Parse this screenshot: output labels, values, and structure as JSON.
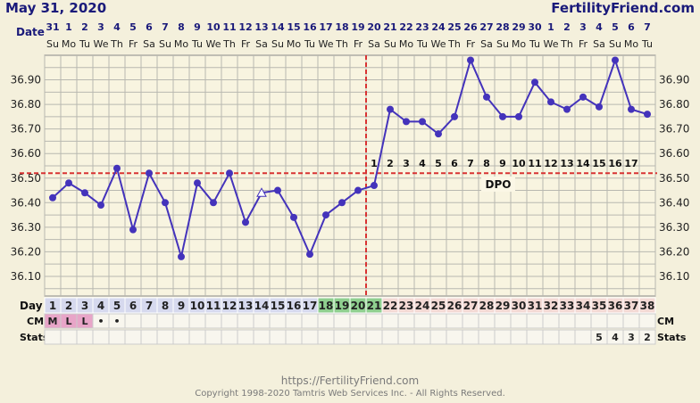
{
  "header": {
    "title": "May 31, 2020",
    "brand": "FertilityFriend.com",
    "date_label": "Date",
    "day_label": "Day",
    "cm_label": "CM",
    "stats_label": "Stats",
    "dpo_label": "DPO"
  },
  "footer": {
    "url": "https://FertilityFriend.com",
    "copyright": "Copyright 1998-2020 Tamtris Web Services Inc. - All Rights Reserved."
  },
  "colors": {
    "background": "#f4f0dc",
    "plot_bg": "#f8f4e0",
    "grid": "#b8b8b0",
    "line": "#4433bb",
    "marker": "#4433bb",
    "coverline": "#d83333",
    "header_text": "#1a1a7a",
    "row_blue": "#d6d9ee",
    "row_green": "#8fcf8f",
    "row_pink": "#f3d9d4",
    "cm_pink": "#e8a5c8"
  },
  "chart_data": {
    "type": "line",
    "title": "May 31, 2020",
    "dates": [
      "31",
      "1",
      "2",
      "3",
      "4",
      "5",
      "6",
      "7",
      "8",
      "9",
      "10",
      "11",
      "12",
      "13",
      "14",
      "15",
      "16",
      "17",
      "18",
      "19",
      "20",
      "21",
      "22",
      "23",
      "24",
      "25",
      "26",
      "27",
      "28",
      "29",
      "30",
      "1",
      "2",
      "3",
      "4",
      "5",
      "6",
      "7"
    ],
    "weekdays": [
      "Su",
      "Mo",
      "Tu",
      "We",
      "Th",
      "Fr",
      "Sa",
      "Su",
      "Mo",
      "Tu",
      "We",
      "Th",
      "Fr",
      "Sa",
      "Su",
      "Mo",
      "Tu",
      "We",
      "Th",
      "Fr",
      "Sa",
      "Su",
      "Mo",
      "Tu",
      "We",
      "Th",
      "Fr",
      "Sa",
      "Su",
      "Mo",
      "Tu",
      "We",
      "Th",
      "Fr",
      "Sa",
      "Su",
      "Mo",
      "Tu"
    ],
    "days": [
      1,
      2,
      3,
      4,
      5,
      6,
      7,
      8,
      9,
      10,
      11,
      12,
      13,
      14,
      15,
      16,
      17,
      18,
      19,
      20,
      21,
      22,
      23,
      24,
      25,
      26,
      27,
      28,
      29,
      30,
      31,
      32,
      33,
      34,
      35,
      36,
      37,
      38
    ],
    "temperatures": [
      36.42,
      36.48,
      36.44,
      36.39,
      36.54,
      36.29,
      36.52,
      36.4,
      36.18,
      36.48,
      36.4,
      36.52,
      36.32,
      36.44,
      36.45,
      36.34,
      36.19,
      36.35,
      36.4,
      36.45,
      36.47,
      36.78,
      36.73,
      36.73,
      36.68,
      36.75,
      36.98,
      36.83,
      36.75,
      36.75,
      36.89,
      36.81,
      36.78,
      36.83,
      36.79,
      36.98,
      36.78,
      36.76
    ],
    "open_marker_days": [
      14
    ],
    "y_ticks": [
      "36.10",
      "36.20",
      "36.30",
      "36.40",
      "36.50",
      "36.60",
      "36.70",
      "36.80",
      "36.90"
    ],
    "ylim": [
      36.02,
      37.0
    ],
    "coverline": 36.52,
    "ovulation_day": 20,
    "dpo": [
      1,
      2,
      3,
      4,
      5,
      6,
      7,
      8,
      9,
      10,
      11,
      12,
      13,
      14,
      15,
      16,
      17
    ],
    "fertile_days": [
      18,
      19,
      20,
      21
    ],
    "cm": [
      {
        "day": 1,
        "label": "M"
      },
      {
        "day": 2,
        "label": "L"
      },
      {
        "day": 3,
        "label": "L"
      },
      {
        "day": 4,
        "label": "•"
      },
      {
        "day": 5,
        "label": "•"
      }
    ],
    "stats": [
      {
        "day": 35,
        "label": "5"
      },
      {
        "day": 36,
        "label": "4"
      },
      {
        "day": 37,
        "label": "3"
      },
      {
        "day": 38,
        "label": "2"
      }
    ],
    "grid": true
  }
}
